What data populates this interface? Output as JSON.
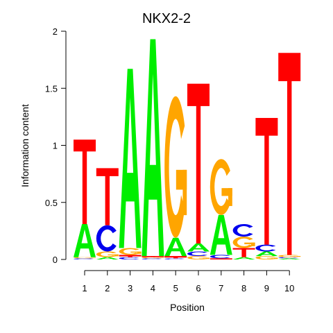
{
  "chart_data": {
    "type": "sequence-logo",
    "title": "NKX2-2",
    "xlabel": "Position",
    "ylabel": "Information content",
    "ylim": [
      0,
      2
    ],
    "yticks": [
      "0",
      "0.5",
      "1",
      "1.5",
      "2"
    ],
    "positions": [
      "1",
      "2",
      "3",
      "4",
      "5",
      "6",
      "7",
      "8",
      "9",
      "10"
    ],
    "colors": {
      "A": "#00ee00",
      "C": "#0000ee",
      "G": "#ffa500",
      "T": "#ff0000"
    },
    "stacks": [
      [
        {
          "base": "C",
          "height": 0.01
        },
        {
          "base": "G",
          "height": 0.01
        },
        {
          "base": "A",
          "height": 0.29
        },
        {
          "base": "T",
          "height": 0.74
        }
      ],
      [
        {
          "base": "A",
          "height": 0.02
        },
        {
          "base": "G",
          "height": 0.05
        },
        {
          "base": "C",
          "height": 0.23
        },
        {
          "base": "T",
          "height": 0.5
        }
      ],
      [
        {
          "base": "C",
          "height": 0.02
        },
        {
          "base": "T",
          "height": 0.02
        },
        {
          "base": "G",
          "height": 0.06
        },
        {
          "base": "A",
          "height": 1.57
        }
      ],
      [
        {
          "base": "C",
          "height": 0.01
        },
        {
          "base": "G",
          "height": 0.01
        },
        {
          "base": "T",
          "height": 0.01
        },
        {
          "base": "A",
          "height": 1.9
        }
      ],
      [
        {
          "base": "C",
          "height": 0.01
        },
        {
          "base": "T",
          "height": 0.02
        },
        {
          "base": "A",
          "height": 0.16
        },
        {
          "base": "G",
          "height": 1.24
        }
      ],
      [
        {
          "base": "G",
          "height": 0.03
        },
        {
          "base": "C",
          "height": 0.04
        },
        {
          "base": "A",
          "height": 0.07
        },
        {
          "base": "T",
          "height": 1.4
        }
      ],
      [
        {
          "base": "T",
          "height": 0.01
        },
        {
          "base": "C",
          "height": 0.03
        },
        {
          "base": "A",
          "height": 0.35
        },
        {
          "base": "G",
          "height": 0.49
        }
      ],
      [
        {
          "base": "A",
          "height": 0.02
        },
        {
          "base": "T",
          "height": 0.08
        },
        {
          "base": "G",
          "height": 0.1
        },
        {
          "base": "C",
          "height": 0.11
        }
      ],
      [
        {
          "base": "G",
          "height": 0.03
        },
        {
          "base": "A",
          "height": 0.04
        },
        {
          "base": "C",
          "height": 0.06
        },
        {
          "base": "T",
          "height": 1.11
        }
      ],
      [
        {
          "base": "A",
          "height": 0.01
        },
        {
          "base": "C",
          "height": 0.01
        },
        {
          "base": "G",
          "height": 0.02
        },
        {
          "base": "T",
          "height": 1.77
        }
      ]
    ]
  }
}
